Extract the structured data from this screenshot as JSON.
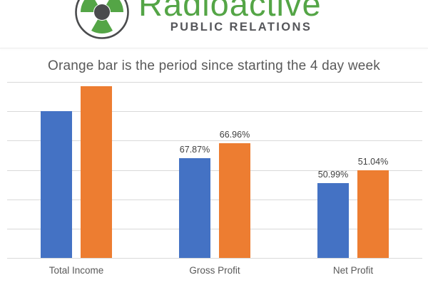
{
  "logo": {
    "brand": "Radioactive",
    "tagline": "PUBLIC RELATIONS",
    "brand_color": "#54A546",
    "tagline_color": "#55565A",
    "icon": "radiation-trefoil-icon",
    "icon_green": "#54A546",
    "icon_gray": "#4A4B4D"
  },
  "chart_data": {
    "type": "bar",
    "title": "Orange bar is the period since starting the 4 day week",
    "title_color": "#595959",
    "categories": [
      "Total Income",
      "Gross Profit",
      "Net Profit"
    ],
    "series": [
      {
        "name": "blue",
        "color": "#4472C4",
        "values": [
          100,
          67.87,
          50.99
        ],
        "data_labels": [
          "",
          "67.87%",
          "50.99%"
        ]
      },
      {
        "name": "orange",
        "color": "#ED7D31",
        "values": [
          117,
          78.3,
          59.7
        ],
        "data_labels": [
          "",
          "66.96%",
          "51.04%"
        ]
      }
    ],
    "values_estimated_from_pixels": true,
    "ylim": [
      0,
      120
    ],
    "gridline_step": 20,
    "grid": true,
    "gridline_color": "#D9D9D9",
    "legend": "none",
    "y_axis_labels_visible": false,
    "category_label_color": "#595959",
    "data_label_color": "#404040"
  }
}
